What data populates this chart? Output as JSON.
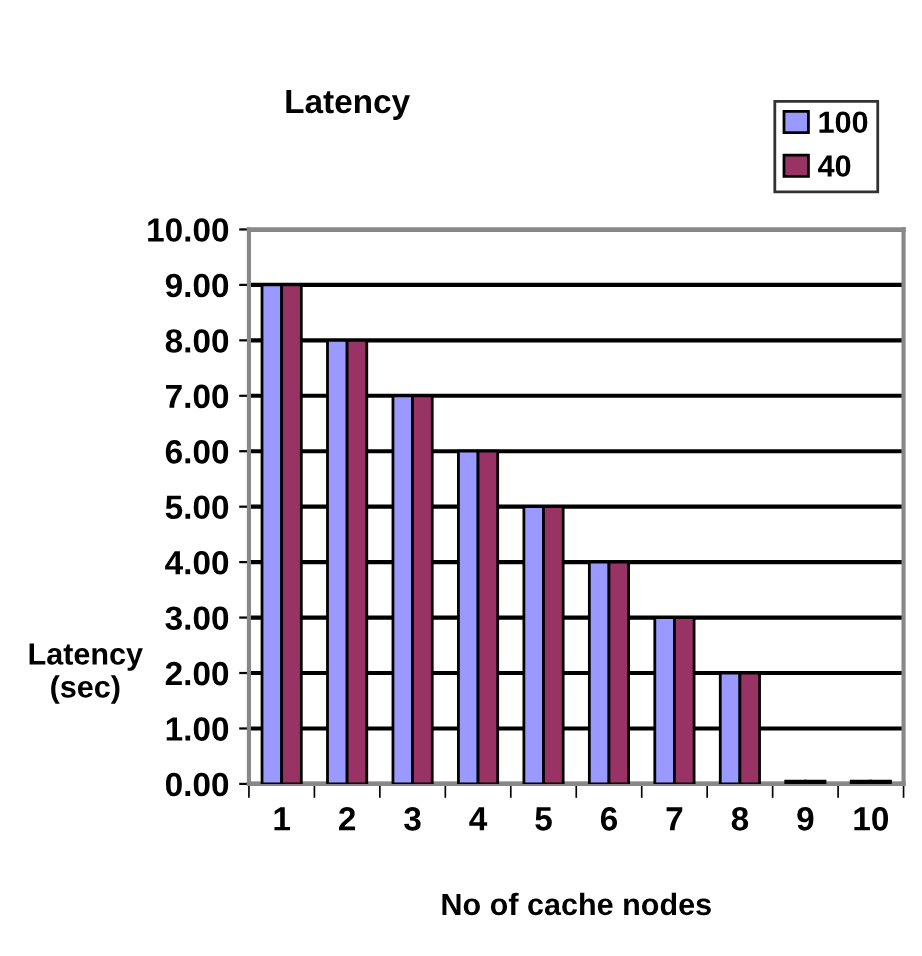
{
  "chart_data": {
    "type": "bar",
    "title": "Latency",
    "xlabel": "No of cache nodes",
    "ylabel": "Latency\n(sec)",
    "categories": [
      "1",
      "2",
      "3",
      "4",
      "5",
      "6",
      "7",
      "8",
      "9",
      "10"
    ],
    "series": [
      {
        "name": "100",
        "color": "#9999ff",
        "values": [
          9,
          8,
          7,
          6,
          5,
          4,
          3,
          2,
          0.05,
          0.05
        ]
      },
      {
        "name": "40",
        "color": "#993366",
        "values": [
          9,
          8,
          7,
          6,
          5,
          4,
          3,
          2,
          0.05,
          0.05
        ]
      }
    ],
    "ylim": [
      0,
      10
    ],
    "yticks": [
      {
        "value": 0,
        "label": "0.00"
      },
      {
        "value": 1,
        "label": "1.00"
      },
      {
        "value": 2,
        "label": "2.00"
      },
      {
        "value": 3,
        "label": "3.00"
      },
      {
        "value": 4,
        "label": "4.00"
      },
      {
        "value": 5,
        "label": "5.00"
      },
      {
        "value": 6,
        "label": "6.00"
      },
      {
        "value": 7,
        "label": "7.00"
      },
      {
        "value": 8,
        "label": "8.00"
      },
      {
        "value": 9,
        "label": "9.00"
      },
      {
        "value": 10,
        "label": "10.00"
      }
    ],
    "grid": "y",
    "legend": "top right"
  }
}
